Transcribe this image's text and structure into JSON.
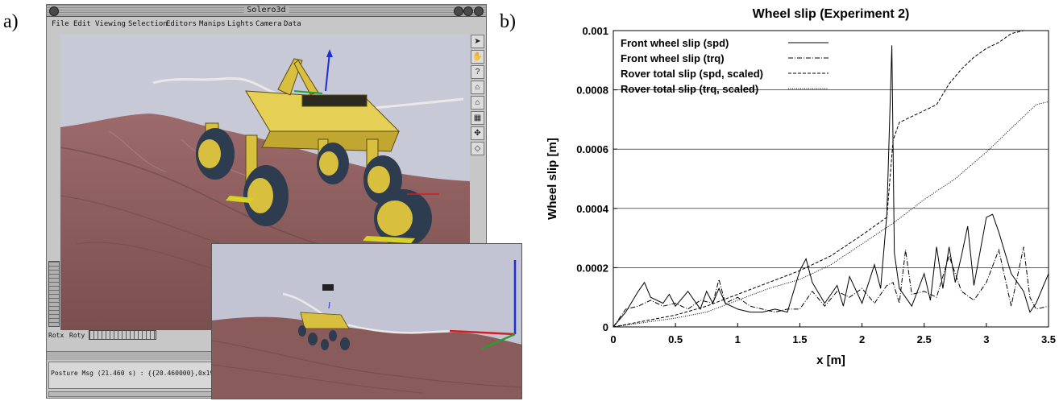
{
  "panel_a_label": "a)",
  "panel_b_label": "b)",
  "window": {
    "title": "Solero3d",
    "menu": [
      "File",
      "Edit",
      "Viewing",
      "Selection",
      "Editors",
      "Manips",
      "Lights",
      "Camera",
      "Data"
    ],
    "tools": [
      "arrow-icon",
      "hand-icon",
      "question-icon",
      "home-icon",
      "set-home-icon",
      "view-all-icon",
      "seek-icon",
      "perspective-icon"
    ],
    "rotx_label": "Rotx",
    "roty_label": "Roty",
    "status_text": "Posture Msg (21.460 s) : {{20.460000},0x19F,{0,◇"
  },
  "colors": {
    "terrain": "#8a5b5b",
    "sky": "#c8c9d7",
    "rover_body": "#d9bf3e",
    "wheel": "#2d3c4e",
    "axis_x": "#d11f1f",
    "axis_y": "#22a02a",
    "axis_z": "#1d2fd1"
  },
  "chart_data": {
    "type": "line",
    "title": "Wheel slip (Experiment 2)",
    "xlabel": "x [m]",
    "ylabel": "Wheel slip [m]",
    "xlim": [
      0,
      3.5
    ],
    "ylim": [
      0,
      0.001
    ],
    "xticks": [
      "0",
      "0.5",
      "1",
      "1.5",
      "2",
      "2.5",
      "3",
      "3.5"
    ],
    "yticks": [
      "0",
      "0.0002",
      "0.0004",
      "0.0006",
      "0.0008",
      "0.001"
    ],
    "grid": "horizontal",
    "legend_position": "top-left",
    "series": [
      {
        "name": "Front wheel slip (spd)",
        "dash": "solid",
        "x": [
          0,
          0.1,
          0.2,
          0.25,
          0.3,
          0.4,
          0.45,
          0.5,
          0.6,
          0.7,
          0.75,
          0.8,
          0.85,
          0.9,
          1.0,
          1.1,
          1.2,
          1.3,
          1.4,
          1.5,
          1.55,
          1.6,
          1.7,
          1.8,
          1.85,
          1.9,
          2.0,
          2.1,
          2.15,
          2.2,
          2.24,
          2.26,
          2.3,
          2.4,
          2.5,
          2.55,
          2.6,
          2.65,
          2.7,
          2.75,
          2.8,
          2.85,
          2.9,
          3.0,
          3.05,
          3.1,
          3.2,
          3.3,
          3.35,
          3.4,
          3.5
        ],
        "y": [
          0,
          5e-05,
          0.00012,
          0.00015,
          0.0001,
          8e-05,
          0.00011,
          7e-05,
          0.00012,
          6e-05,
          0.00012,
          8e-05,
          0.00013,
          8e-05,
          6e-05,
          5e-05,
          5e-05,
          6e-05,
          5e-05,
          0.00019,
          0.00023,
          0.00015,
          8e-05,
          0.00014,
          7e-05,
          0.00017,
          8e-05,
          0.00021,
          0.00013,
          0.00038,
          0.00095,
          0.00025,
          0.00013,
          7e-05,
          0.00018,
          9e-05,
          0.00027,
          0.00013,
          0.00027,
          0.00015,
          0.00024,
          0.00034,
          0.00014,
          0.00037,
          0.00038,
          0.00032,
          0.00018,
          0.00012,
          5e-05,
          8e-05,
          0.00018
        ]
      },
      {
        "name": "Front wheel slip (trq)",
        "dash": "dashdot",
        "x": [
          0,
          0.1,
          0.2,
          0.3,
          0.4,
          0.5,
          0.6,
          0.7,
          0.8,
          0.85,
          0.9,
          1.0,
          1.1,
          1.2,
          1.3,
          1.4,
          1.5,
          1.6,
          1.7,
          1.8,
          1.9,
          2.0,
          2.1,
          2.2,
          2.25,
          2.3,
          2.35,
          2.4,
          2.5,
          2.6,
          2.7,
          2.8,
          2.9,
          3.0,
          3.1,
          3.2,
          3.3,
          3.35,
          3.4,
          3.5
        ],
        "y": [
          0,
          6e-05,
          7e-05,
          9e-05,
          7e-05,
          8e-05,
          6e-05,
          9e-05,
          8e-05,
          0.00016,
          8e-05,
          0.0001,
          7e-05,
          6e-05,
          5e-05,
          6e-05,
          6e-05,
          0.00012,
          7e-05,
          0.00012,
          0.0001,
          0.00013,
          8e-05,
          0.00014,
          0.00015,
          8e-05,
          0.00026,
          0.00011,
          0.00012,
          0.0001,
          0.00024,
          0.00012,
          9e-05,
          0.00015,
          0.00026,
          7e-05,
          0.00027,
          0.0001,
          6e-05,
          7e-05
        ]
      },
      {
        "name": "Rover total slip (spd, scaled)",
        "dash": "dashed",
        "x": [
          0,
          0.25,
          0.5,
          0.75,
          1.0,
          1.25,
          1.5,
          1.75,
          2.0,
          2.2,
          2.25,
          2.3,
          2.4,
          2.5,
          2.6,
          2.7,
          2.8,
          2.9,
          3.0,
          3.1,
          3.2,
          3.3
        ],
        "y": [
          0,
          2e-05,
          4e-05,
          7e-05,
          0.00011,
          0.00015,
          0.00019,
          0.00024,
          0.00031,
          0.00037,
          0.00063,
          0.00069,
          0.00071,
          0.00073,
          0.00075,
          0.00082,
          0.00087,
          0.00091,
          0.00094,
          0.00096,
          0.00099,
          0.001
        ]
      },
      {
        "name": "Rover total slip (trq, scaled)",
        "dash": "dotted",
        "x": [
          0,
          0.25,
          0.5,
          0.75,
          1.0,
          1.25,
          1.5,
          1.75,
          2.0,
          2.25,
          2.5,
          2.75,
          3.0,
          3.1,
          3.2,
          3.3,
          3.4,
          3.5
        ],
        "y": [
          0,
          1.5e-05,
          3e-05,
          5e-05,
          9e-05,
          0.00013,
          0.00016,
          0.00021,
          0.00028,
          0.00035,
          0.00043,
          0.0005,
          0.00059,
          0.00063,
          0.00067,
          0.00071,
          0.00075,
          0.00076
        ]
      }
    ]
  }
}
